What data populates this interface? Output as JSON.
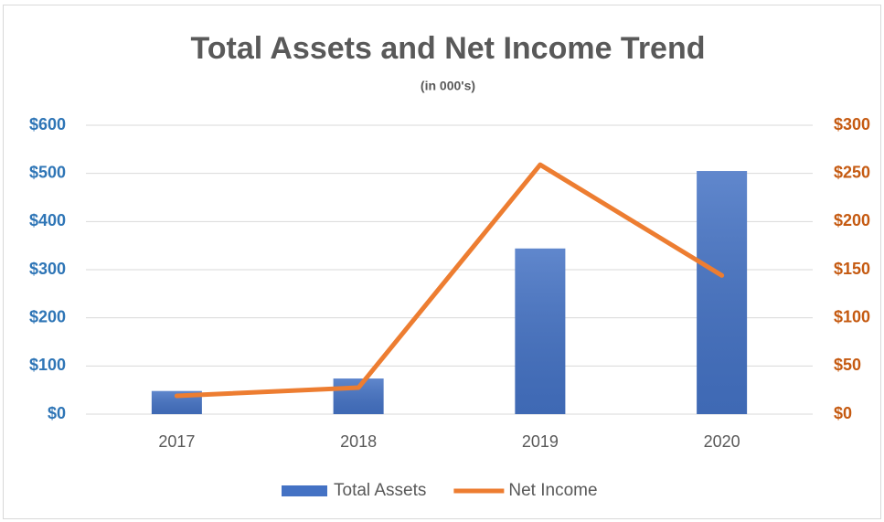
{
  "chart_data": {
    "type": "combo",
    "title": "Total Assets and Net Income Trend",
    "subtitle": "(in 000's)",
    "categories": [
      "2017",
      "2018",
      "2019",
      "2020"
    ],
    "series": [
      {
        "name": "Total Assets",
        "type": "bar",
        "color": "#4472c4",
        "axis": "y",
        "values": [
          48,
          74,
          344,
          505
        ]
      },
      {
        "name": "Net Income",
        "type": "line",
        "color": "#ed7d31",
        "axis": "y2",
        "values": [
          19,
          27.5,
          259,
          144
        ]
      }
    ],
    "ylim": [
      0,
      600
    ],
    "yticks": [
      {
        "value": 0,
        "label": "$0"
      },
      {
        "value": 100,
        "label": "$100"
      },
      {
        "value": 200,
        "label": "$200"
      },
      {
        "value": 300,
        "label": "$300"
      },
      {
        "value": 400,
        "label": "$400"
      },
      {
        "value": 500,
        "label": "$500"
      },
      {
        "value": 600,
        "label": "$600"
      }
    ],
    "y2lim": [
      0,
      300
    ],
    "y2ticks": [
      {
        "value": 0,
        "label": "$0"
      },
      {
        "value": 50,
        "label": "$50"
      },
      {
        "value": 100,
        "label": "$100"
      },
      {
        "value": 150,
        "label": "$150"
      },
      {
        "value": 200,
        "label": "$200"
      },
      {
        "value": 250,
        "label": "$250"
      },
      {
        "value": 300,
        "label": "$300"
      }
    ],
    "ytick_color": "#2e75b6",
    "y2tick_color": "#c55a11",
    "grid": true,
    "legend": "bottom"
  }
}
